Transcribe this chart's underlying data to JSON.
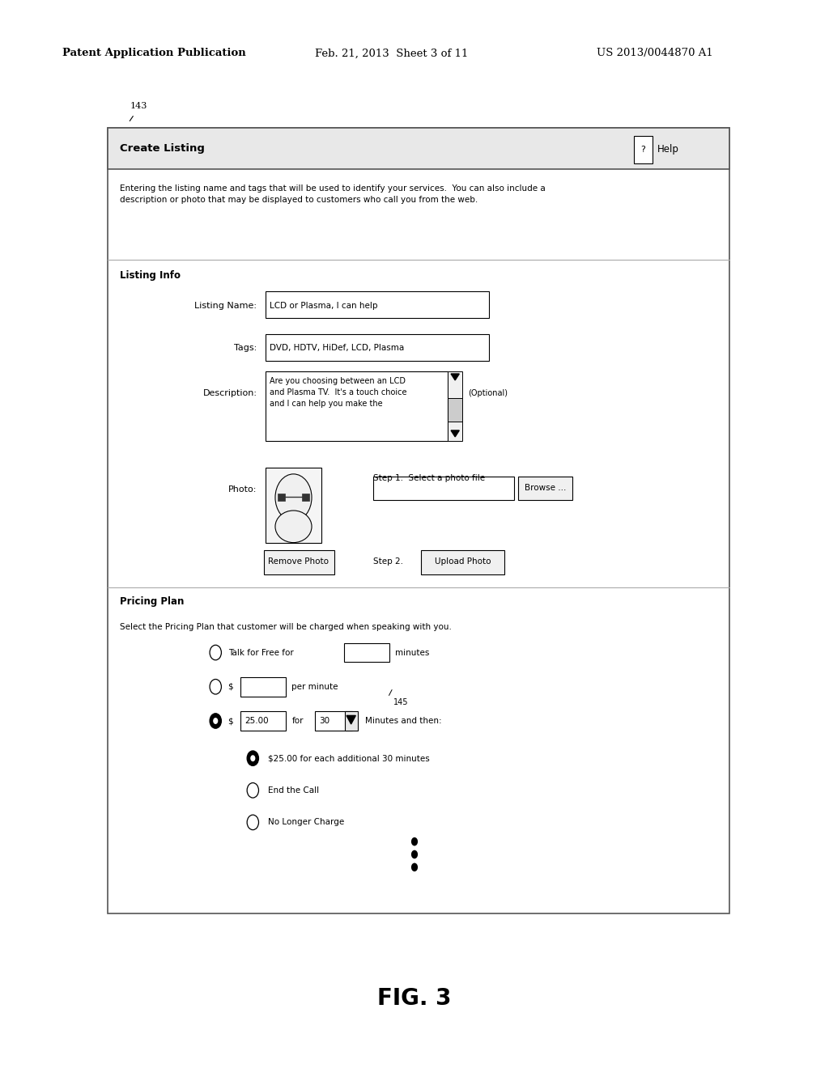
{
  "bg_color": "#ffffff",
  "header_text_left": "Patent Application Publication",
  "header_text_mid": "Feb. 21, 2013  Sheet 3 of 11",
  "header_text_right": "US 2013/0044870 A1",
  "fig_label": "143",
  "dialog_title": "Create Listing",
  "help_text": "Help",
  "intro_text": "Entering the listing name and tags that will be used to identify your services.  You can also include a\ndescription or photo that may be displayed to customers who call you from the web.",
  "section1_title": "Listing Info",
  "listing_name_label": "Listing Name:",
  "listing_name_value": "LCD or Plasma, I can help",
  "tags_label": "Tags:",
  "tags_value": "DVD, HDTV, HiDef, LCD, Plasma",
  "desc_label": "Description:",
  "desc_value": "Are you choosing between an LCD\nand Plasma TV.  It's a touch choice\nand I can help you make the",
  "desc_optional": "(Optional)",
  "photo_label": "Photo:",
  "step1_text": "Step 1.  Select a photo file",
  "step2_text": "Step 2.",
  "remove_photo_btn": "Remove Photo",
  "upload_photo_btn": "Upload Photo",
  "browse_btn": "Browse ...",
  "section2_title": "Pricing Plan",
  "pricing_intro": "Select the Pricing Plan that customer will be charged when speaking with you.",
  "option1_text": "Talk for Free for",
  "option1_suffix": "minutes",
  "option2_dollar": "$",
  "option2_suffix": "per minute",
  "option2_label": "145",
  "option3_dollar": "$",
  "option3_amount": "25.00",
  "option3_for": "for",
  "option3_mins": "30",
  "option3_suffix": "Minutes and then:",
  "sub_option1": "$25.00 for each additional 30 minutes",
  "sub_option2": "End the Call",
  "sub_option3": "No Longer Charge",
  "fig_caption": "FIG. 3"
}
